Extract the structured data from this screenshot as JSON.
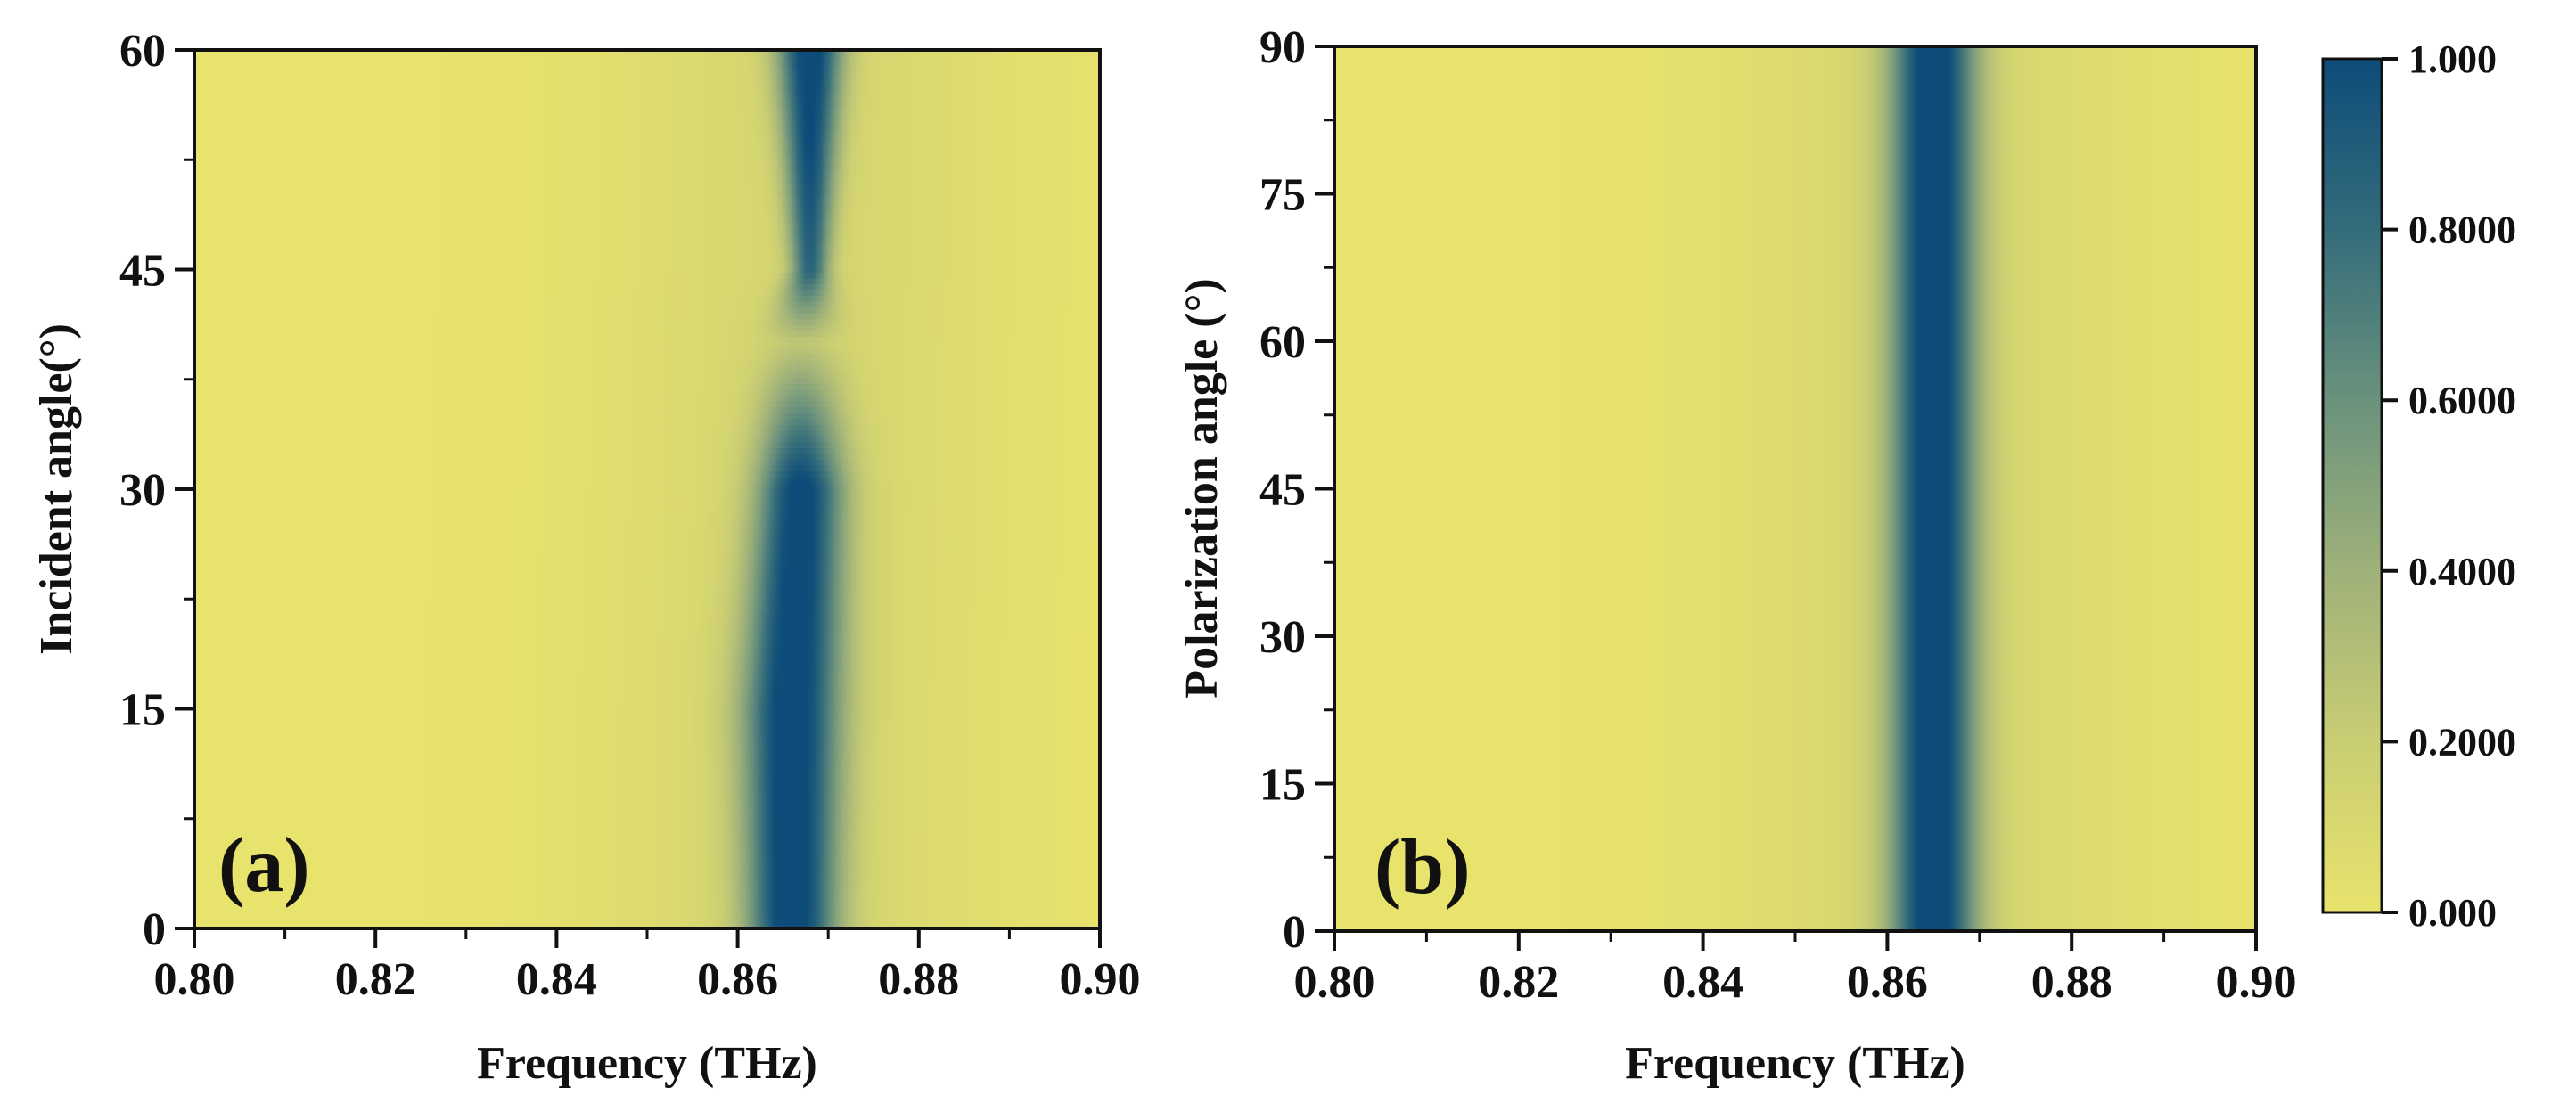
{
  "chart_data": [
    {
      "type": "heatmap",
      "panel_label": "(a)",
      "xlabel": "Frequency (THz)",
      "ylabel": "Incident angle(°)",
      "xlim": [
        0.8,
        0.9
      ],
      "ylim": [
        0,
        60
      ],
      "x_tick_labels": [
        "0.80",
        "0.82",
        "0.84",
        "0.86",
        "0.88",
        "0.90"
      ],
      "y_tick_labels": [
        "0",
        "15",
        "30",
        "45",
        "60"
      ],
      "value_range": [
        0.0,
        1.0
      ],
      "resonance_description": "absorption peak near 0.866 THz, strongest at 0-30° and 45-60°, fading near 40°",
      "resonance_points": [
        {
          "angle": 0,
          "frequency": 0.866,
          "peak": 1.0,
          "width": 0.0035
        },
        {
          "angle": 15,
          "frequency": 0.866,
          "peak": 1.0,
          "width": 0.0038
        },
        {
          "angle": 30,
          "frequency": 0.867,
          "peak": 0.95,
          "width": 0.0034
        },
        {
          "angle": 40,
          "frequency": 0.867,
          "peak": 0.12,
          "width": 0.003
        },
        {
          "angle": 45,
          "frequency": 0.868,
          "peak": 0.75,
          "width": 0.0015
        },
        {
          "angle": 60,
          "frequency": 0.868,
          "peak": 1.0,
          "width": 0.0025
        }
      ]
    },
    {
      "type": "heatmap",
      "panel_label": "(b)",
      "xlabel": "Frequency (THz)",
      "ylabel": "Polarization angle (°)",
      "xlim": [
        0.8,
        0.9
      ],
      "ylim": [
        0,
        90
      ],
      "x_tick_labels": [
        "0.80",
        "0.82",
        "0.84",
        "0.86",
        "0.88",
        "0.90"
      ],
      "y_tick_labels": [
        "0",
        "15",
        "30",
        "45",
        "60",
        "75",
        "90"
      ],
      "value_range": [
        0.0,
        1.0
      ],
      "resonance_description": "polarization-insensitive absorption peak at 0.865 THz for all angles",
      "resonance_points": [
        {
          "angle": 0,
          "frequency": 0.865,
          "peak": 1.0,
          "width": 0.0033
        },
        {
          "angle": 90,
          "frequency": 0.865,
          "peak": 1.0,
          "width": 0.0033
        }
      ]
    }
  ],
  "colorbar": {
    "range": [
      0.0,
      1.0
    ],
    "tick_values": [
      0.0,
      0.2,
      0.4,
      0.6,
      0.8,
      1.0
    ],
    "tick_labels": [
      "0.000",
      "0.2000",
      "0.4000",
      "0.6000",
      "0.8000",
      "1.000"
    ],
    "colors": {
      "low": "#e8e36c",
      "mid": "#aeb877",
      "high": "#0d4c79"
    }
  }
}
